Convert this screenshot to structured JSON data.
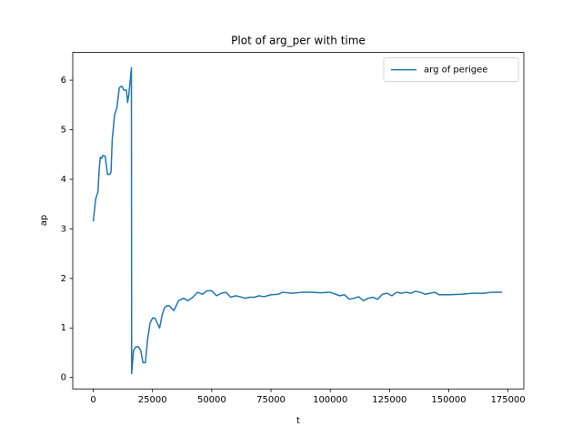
{
  "chart_data": {
    "type": "line",
    "title": "Plot of arg_per with time",
    "x_label": "t",
    "y_label": "ap",
    "x": [
      0,
      1000,
      2000,
      2500,
      3000,
      3500,
      4000,
      5000,
      5500,
      6000,
      7000,
      7500,
      8000,
      9000,
      10000,
      11000,
      12000,
      13000,
      14000,
      14500,
      15000,
      16100,
      16200,
      17000,
      18000,
      19000,
      20000,
      21000,
      22000,
      23000,
      24000,
      25000,
      26000,
      27000,
      28000,
      29000,
      30000,
      31000,
      32000,
      34000,
      36000,
      38000,
      40000,
      42000,
      44000,
      46000,
      48000,
      50000,
      52000,
      54000,
      56000,
      58000,
      60000,
      62000,
      64000,
      66000,
      68000,
      70000,
      72000,
      75000,
      78000,
      80000,
      84000,
      88000,
      92000,
      96000,
      100000,
      104000,
      106000,
      108000,
      110000,
      112000,
      114000,
      116000,
      118000,
      120000,
      122000,
      124000,
      126000,
      128000,
      130000,
      132000,
      134000,
      136000,
      138000,
      140000,
      142000,
      144000,
      146000,
      150000,
      155000,
      160000,
      165000,
      168000,
      172500
    ],
    "series": [
      {
        "name": "arg of perigee",
        "color": "#1f77b4",
        "values": [
          3.15,
          3.6,
          3.75,
          4.2,
          4.45,
          4.42,
          4.48,
          4.47,
          4.3,
          4.1,
          4.1,
          4.15,
          4.8,
          5.3,
          5.45,
          5.85,
          5.88,
          5.8,
          5.8,
          5.55,
          5.7,
          6.25,
          0.08,
          0.55,
          0.62,
          0.62,
          0.55,
          0.3,
          0.3,
          0.8,
          1.1,
          1.2,
          1.2,
          1.1,
          1.0,
          1.25,
          1.4,
          1.45,
          1.45,
          1.35,
          1.55,
          1.6,
          1.55,
          1.62,
          1.72,
          1.68,
          1.75,
          1.75,
          1.65,
          1.7,
          1.72,
          1.62,
          1.65,
          1.63,
          1.6,
          1.62,
          1.62,
          1.65,
          1.63,
          1.67,
          1.68,
          1.72,
          1.7,
          1.72,
          1.72,
          1.71,
          1.72,
          1.65,
          1.67,
          1.58,
          1.6,
          1.63,
          1.55,
          1.6,
          1.62,
          1.58,
          1.68,
          1.7,
          1.65,
          1.72,
          1.7,
          1.72,
          1.7,
          1.74,
          1.72,
          1.68,
          1.7,
          1.72,
          1.67,
          1.67,
          1.68,
          1.7,
          1.7,
          1.72,
          1.72
        ]
      }
    ],
    "xlim": [
      -8650,
      181650
    ],
    "xticks": [
      0,
      25000,
      50000,
      75000,
      100000,
      125000,
      150000,
      175000
    ],
    "ylim": [
      -0.23,
      6.56
    ],
    "yticks": [
      0,
      1,
      2,
      3,
      4,
      5,
      6
    ],
    "legend": "upper right",
    "grid": false
  }
}
